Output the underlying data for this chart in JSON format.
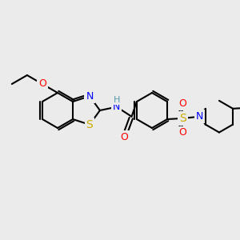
{
  "bg_color": "#ebebeb",
  "bond_color": "#000000",
  "line_width": 1.5,
  "atom_colors": {
    "N": "#0000ff",
    "S_thia": "#ccaa00",
    "S_sulf": "#ccaa00",
    "O": "#ff0000",
    "H": "#5599aa",
    "C": "#000000"
  },
  "font_size": 9,
  "figsize": [
    3.0,
    3.0
  ],
  "dpi": 100
}
